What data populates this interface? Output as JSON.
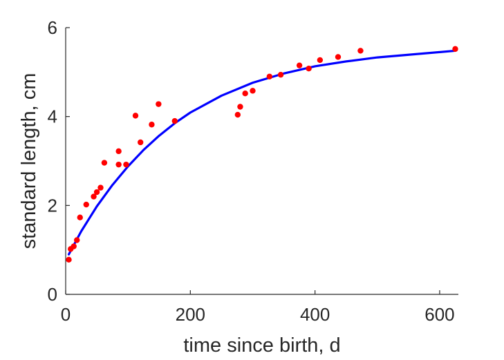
{
  "chart_data": {
    "type": "scatter",
    "xlabel": "time since birth, d",
    "ylabel": "standard length, cm",
    "xlim": [
      0,
      630
    ],
    "ylim": [
      0,
      6
    ],
    "xticks": [
      0,
      200,
      400,
      600
    ],
    "yticks": [
      0,
      2,
      4,
      6
    ],
    "grid": false,
    "series": [
      {
        "kind": "scatter",
        "color": "#ff0000",
        "points": [
          [
            5,
            0.78
          ],
          [
            8,
            1.02
          ],
          [
            13,
            1.08
          ],
          [
            18,
            1.22
          ],
          [
            23,
            1.73
          ],
          [
            33,
            2.02
          ],
          [
            45,
            2.2
          ],
          [
            50,
            2.3
          ],
          [
            56,
            2.4
          ],
          [
            62,
            2.96
          ],
          [
            85,
            3.22
          ],
          [
            85,
            2.92
          ],
          [
            97,
            2.92
          ],
          [
            112,
            4.02
          ],
          [
            120,
            3.42
          ],
          [
            138,
            3.82
          ],
          [
            149,
            4.28
          ],
          [
            175,
            3.9
          ],
          [
            276,
            4.04
          ],
          [
            280,
            4.22
          ],
          [
            288,
            4.52
          ],
          [
            300,
            4.58
          ],
          [
            327,
            4.9
          ],
          [
            345,
            4.94
          ],
          [
            375,
            5.15
          ],
          [
            390,
            5.08
          ],
          [
            408,
            5.27
          ],
          [
            437,
            5.34
          ],
          [
            473,
            5.48
          ],
          [
            625,
            5.52
          ]
        ]
      },
      {
        "kind": "line",
        "color": "#0000ff",
        "x": [
          5,
          25,
          50,
          75,
          100,
          125,
          150,
          175,
          200,
          250,
          300,
          350,
          400,
          450,
          500,
          550,
          625
        ],
        "y": [
          0.9,
          1.42,
          1.98,
          2.46,
          2.88,
          3.25,
          3.57,
          3.85,
          4.09,
          4.47,
          4.76,
          4.97,
          5.13,
          5.24,
          5.33,
          5.39,
          5.48
        ]
      }
    ]
  }
}
